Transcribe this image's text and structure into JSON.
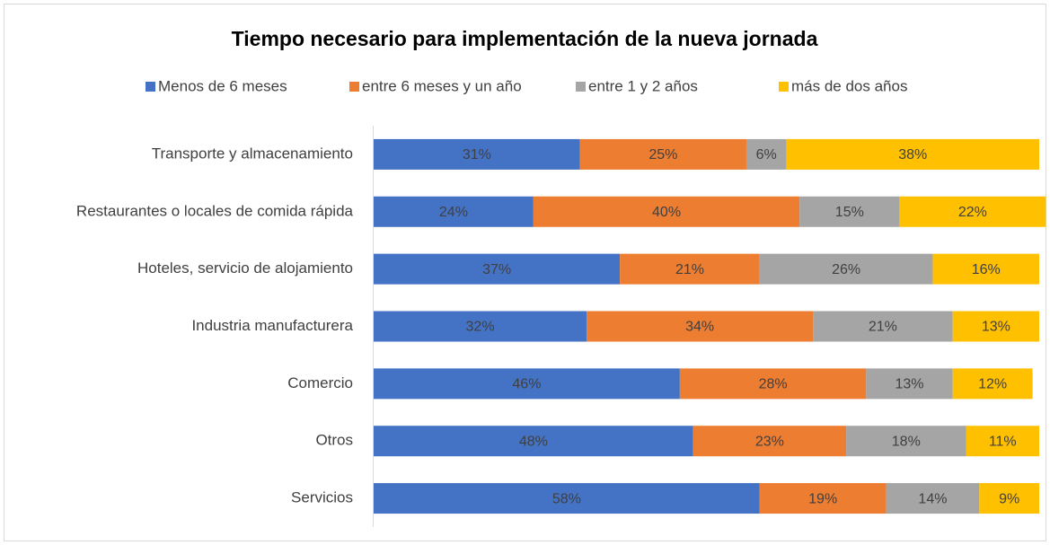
{
  "chart_data": {
    "type": "stacked-barh",
    "title": "Tiempo necesario para implementación de la nueva jornada",
    "categories": [
      "Transporte y almacenamiento",
      "Restaurantes o locales de comida rápida",
      "Hoteles, servicio de alojamiento",
      "Industria manufacturera",
      "Comercio",
      "Otros",
      "Servicios"
    ],
    "series": [
      {
        "name": "Menos de 6 meses",
        "color": "#4472c4",
        "values": [
          31,
          24,
          37,
          32,
          46,
          48,
          58
        ],
        "value_labels": [
          "31%",
          "24%",
          "37%",
          "32%",
          "46%",
          "48%",
          "58%"
        ]
      },
      {
        "name": "entre 6 meses y un año",
        "color": "#ed7d31",
        "values": [
          25,
          40,
          21,
          34,
          28,
          23,
          19
        ],
        "value_labels": [
          "25%",
          "40%",
          "21%",
          "34%",
          "28%",
          "23%",
          "19%"
        ]
      },
      {
        "name": "entre 1 y 2 años",
        "color": "#a5a5a5",
        "values": [
          6,
          15,
          26,
          21,
          13,
          18,
          14
        ],
        "value_labels": [
          "6%",
          "15%",
          "26%",
          "21%",
          "13%",
          "18%",
          "14%"
        ]
      },
      {
        "name": "más de dos años",
        "color": "#ffc000",
        "values": [
          38,
          22,
          16,
          13,
          12,
          11,
          9
        ],
        "value_labels": [
          "38%",
          "22%",
          "16%",
          "13%",
          "12%",
          "11%",
          "9%"
        ]
      }
    ],
    "xlim": [
      0,
      100
    ]
  }
}
